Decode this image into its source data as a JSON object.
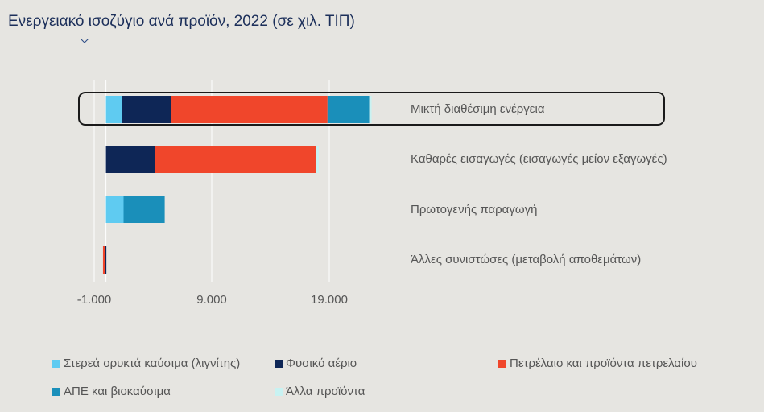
{
  "chart_data": {
    "type": "bar",
    "orientation": "horizontal",
    "stacked": true,
    "title": "Ενεργειακό ισοζύγιο ανά προϊόν, 2022 (σε χιλ. ΤΙΠ)",
    "categories": [
      "Μικτή διαθέσιμη ενέργεια",
      "Καθαρές εισαγωγές (εισαγωγές μείον εξαγωγές)",
      "Πρωτογενής παραγωγή",
      "Άλλες συνιστώσες (μεταβολή αποθεμάτων)"
    ],
    "highlighted_category": "Μικτή διαθέσιμη ενέργεια",
    "series": [
      {
        "name": "Στερεά ορυκτά καύσιμα (λιγνίτης)",
        "color": "#5fcbf1",
        "values": [
          1350,
          0,
          1500,
          0
        ]
      },
      {
        "name": "Φυσικό αέριο",
        "color": "#0e2656",
        "values": [
          4200,
          4200,
          0,
          -100
        ]
      },
      {
        "name": "Πετρέλαιο και προϊόντα πετρελαίου",
        "color": "#f0462b",
        "values": [
          13300,
          13700,
          0,
          -150
        ]
      },
      {
        "name": "ΑΠΕ και βιοκαύσιμα",
        "color": "#1a8fba",
        "values": [
          3550,
          0,
          3500,
          0
        ]
      },
      {
        "name": "Άλλα προϊόντα",
        "color": "#c8f2f2",
        "values": [
          200,
          200,
          0,
          0
        ]
      }
    ],
    "xlim": [
      -1000,
      27000
    ],
    "xticks": [
      -1000,
      9000,
      19000
    ],
    "xtick_labels": [
      "-1.000",
      "9.000",
      "19.000"
    ],
    "grid": true,
    "legend_position": "bottom"
  }
}
